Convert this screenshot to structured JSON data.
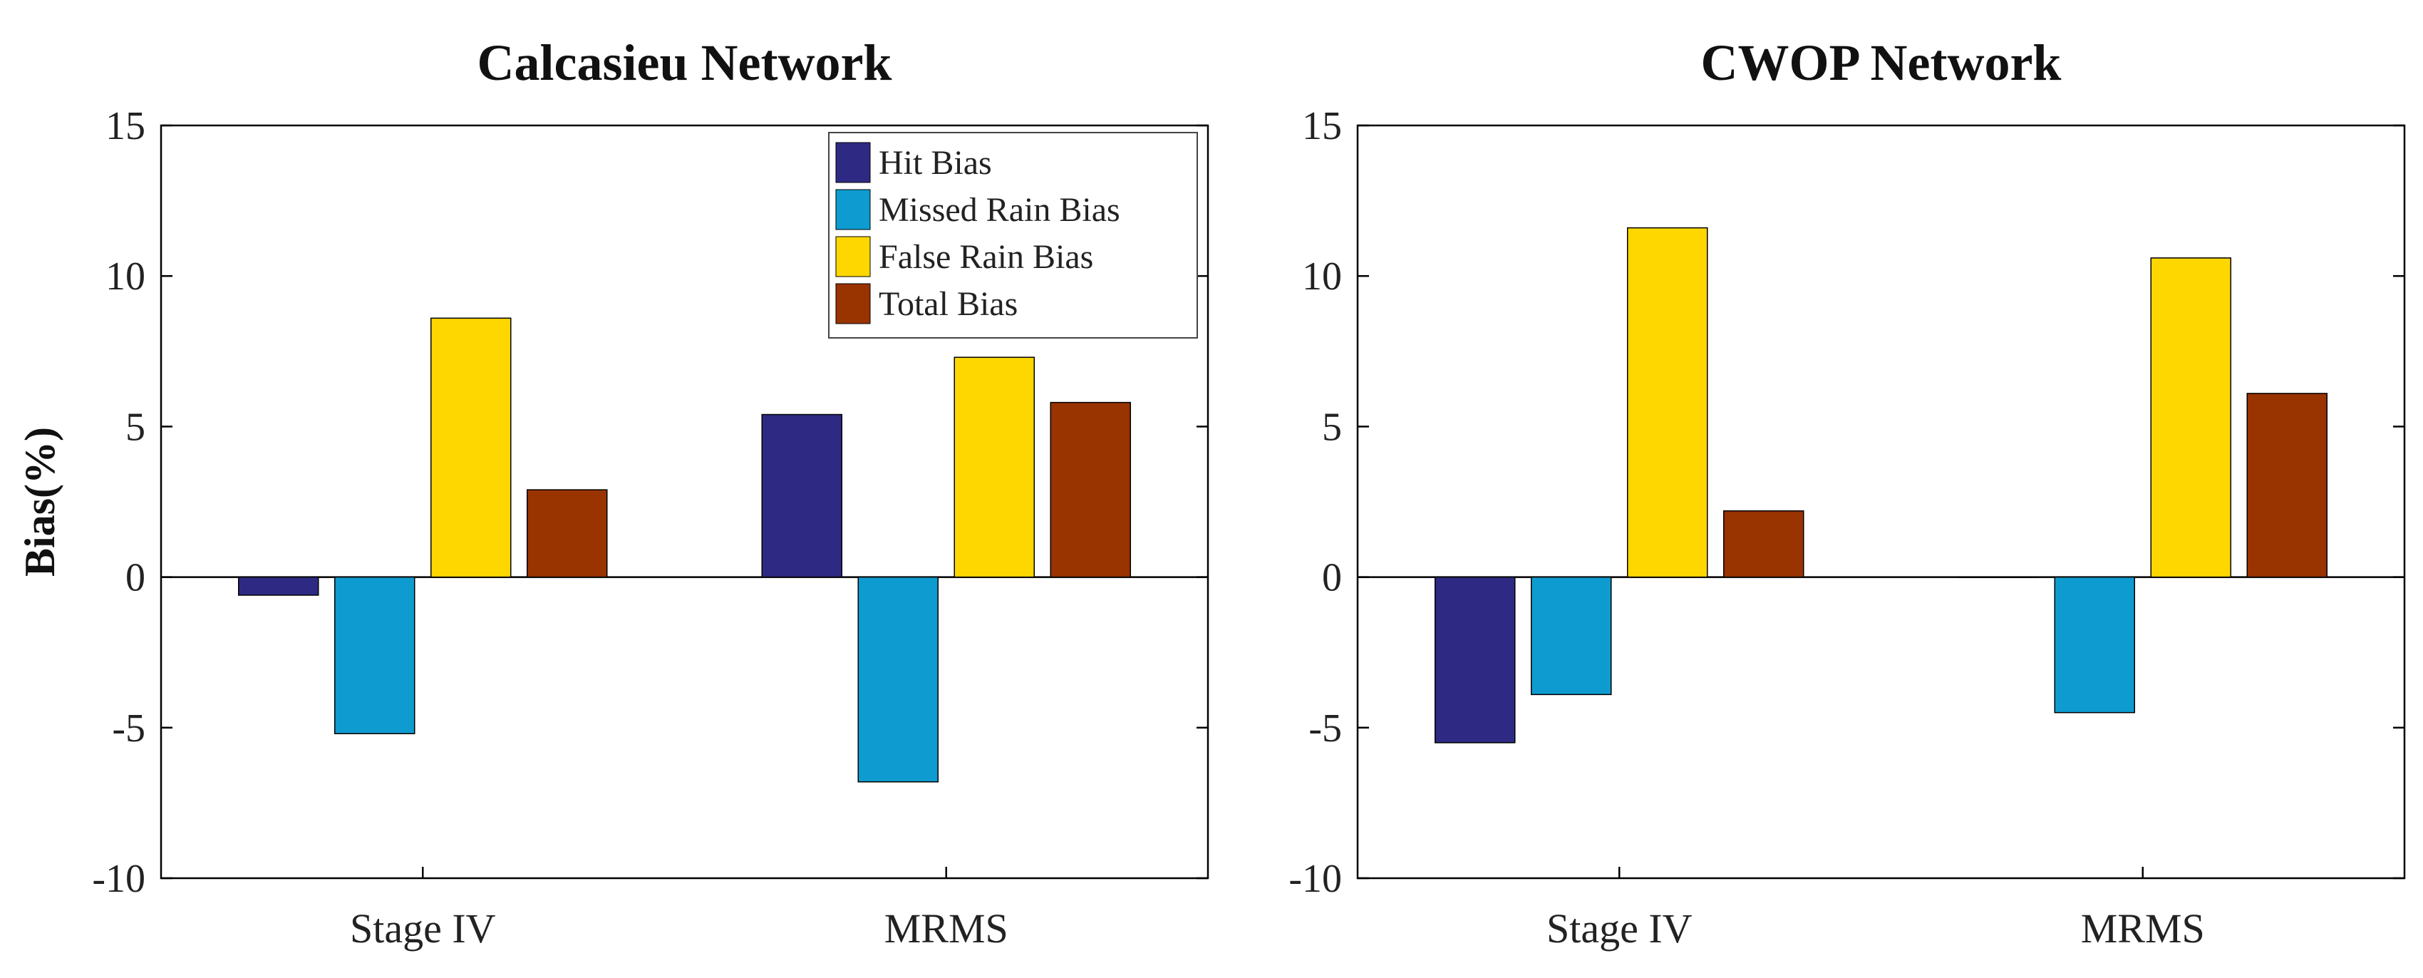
{
  "colors": {
    "hit": "#2E2A83",
    "missed": "#0E9BCF",
    "false": "#FFD700",
    "total": "#993300"
  },
  "chart_data": [
    {
      "type": "bar",
      "title": "Calcasieu Network",
      "ylabel": "Bias(%)",
      "xlabel": "",
      "ylim": [
        -10,
        15
      ],
      "yticks": [
        -10,
        -5,
        0,
        5,
        10,
        15
      ],
      "ytick_labels": [
        "-10",
        "-5",
        "0",
        "5",
        "10",
        "15"
      ],
      "categories": [
        "Stage IV",
        "MRMS"
      ],
      "legend": "top-right",
      "series": [
        {
          "name": "Hit Bias",
          "key": "hit",
          "values": [
            -0.6,
            5.4
          ]
        },
        {
          "name": "Missed Rain Bias",
          "key": "missed",
          "values": [
            -5.2,
            -6.8
          ]
        },
        {
          "name": "False Rain Bias",
          "key": "false",
          "values": [
            8.6,
            7.3
          ]
        },
        {
          "name": "Total Bias",
          "key": "total",
          "values": [
            2.9,
            5.8
          ]
        }
      ]
    },
    {
      "type": "bar",
      "title": "CWOP Network",
      "ylabel": "",
      "xlabel": "",
      "ylim": [
        -10,
        15
      ],
      "yticks": [
        -10,
        -5,
        0,
        5,
        10,
        15
      ],
      "ytick_labels": [
        "-10",
        "-5",
        "0",
        "5",
        "10",
        "15"
      ],
      "categories": [
        "Stage IV",
        "MRMS"
      ],
      "legend": "none",
      "series": [
        {
          "name": "Hit Bias",
          "key": "hit",
          "values": [
            -5.5,
            0.0
          ]
        },
        {
          "name": "Missed Rain Bias",
          "key": "missed",
          "values": [
            -3.9,
            -4.5
          ]
        },
        {
          "name": "False Rain Bias",
          "key": "false",
          "values": [
            11.6,
            10.6
          ]
        },
        {
          "name": "Total Bias",
          "key": "total",
          "values": [
            2.2,
            6.1
          ]
        }
      ]
    }
  ]
}
